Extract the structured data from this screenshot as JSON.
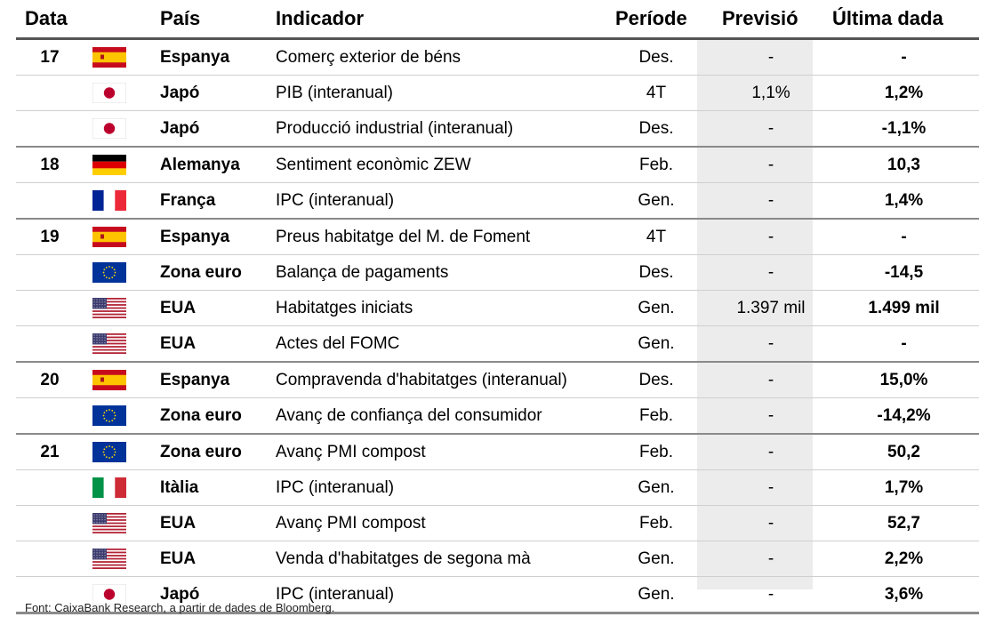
{
  "headers": {
    "date": "Data",
    "country": "País",
    "indicator": "Indicador",
    "period": "Període",
    "forecast": "Previsió",
    "last": "Última dada"
  },
  "rows": [
    {
      "date": "17",
      "flag": "spain-flag",
      "country": "Espanya",
      "indicator": "Comerç exterior de béns",
      "period": "Des.",
      "forecast": "-",
      "last": "-"
    },
    {
      "date": "",
      "flag": "japan-flag",
      "country": "Japó",
      "indicator": "PIB (interanual)",
      "period": "4T",
      "forecast": "1,1%",
      "last": "1,2%"
    },
    {
      "date": "",
      "flag": "japan-flag",
      "country": "Japó",
      "indicator": "Producció industrial (interanual)",
      "period": "Des.",
      "forecast": "-",
      "last": "-1,1%"
    },
    {
      "date": "18",
      "flag": "germany-flag",
      "country": "Alemanya",
      "indicator": "Sentiment econòmic ZEW",
      "period": "Feb.",
      "forecast": "-",
      "last": "10,3"
    },
    {
      "date": "",
      "flag": "france-flag",
      "country": "França",
      "indicator": "IPC (interanual)",
      "period": "Gen.",
      "forecast": "-",
      "last": "1,4%"
    },
    {
      "date": "19",
      "flag": "spain-flag",
      "country": "Espanya",
      "indicator": "Preus habitatge del M. de Foment",
      "period": "4T",
      "forecast": "-",
      "last": "-"
    },
    {
      "date": "",
      "flag": "eu-flag",
      "country": "Zona euro",
      "indicator": "Balança de pagaments",
      "period": "Des.",
      "forecast": "-",
      "last": "-14,5"
    },
    {
      "date": "",
      "flag": "usa-flag",
      "country": "EUA",
      "indicator": "Habitatges iniciats",
      "period": "Gen.",
      "forecast": "1.397 mil",
      "last": "1.499 mil"
    },
    {
      "date": "",
      "flag": "usa-flag",
      "country": "EUA",
      "indicator": "Actes del FOMC",
      "period": "Gen.",
      "forecast": "-",
      "last": "-"
    },
    {
      "date": "20",
      "flag": "spain-flag",
      "country": "Espanya",
      "indicator": "Compravenda d'habitatges (interanual)",
      "period": "Des.",
      "forecast": "-",
      "last": "15,0%"
    },
    {
      "date": "",
      "flag": "eu-flag",
      "country": "Zona euro",
      "indicator": "Avanç de confiança del consumidor",
      "period": "Feb.",
      "forecast": "-",
      "last": "-14,2%"
    },
    {
      "date": "21",
      "flag": "eu-flag",
      "country": "Zona euro",
      "indicator": "Avanç PMI compost",
      "period": "Feb.",
      "forecast": "-",
      "last": "50,2"
    },
    {
      "date": "",
      "flag": "italy-flag",
      "country": "Itàlia",
      "indicator": "IPC (interanual)",
      "period": "Gen.",
      "forecast": "-",
      "last": "1,7%"
    },
    {
      "date": "",
      "flag": "usa-flag",
      "country": "EUA",
      "indicator": "Avanç PMI compost",
      "period": "Feb.",
      "forecast": "-",
      "last": "52,7"
    },
    {
      "date": "",
      "flag": "usa-flag",
      "country": "EUA",
      "indicator": "Venda d'habitatges de segona mà",
      "period": "Gen.",
      "forecast": "-",
      "last": "2,2%"
    },
    {
      "date": "",
      "flag": "japan-flag",
      "country": "Japó",
      "indicator": "IPC (interanual)",
      "period": "Gen.",
      "forecast": "-",
      "last": "3,6%"
    }
  ],
  "source": "Font: CaixaBank Research, a partir de dades de Bloomberg."
}
